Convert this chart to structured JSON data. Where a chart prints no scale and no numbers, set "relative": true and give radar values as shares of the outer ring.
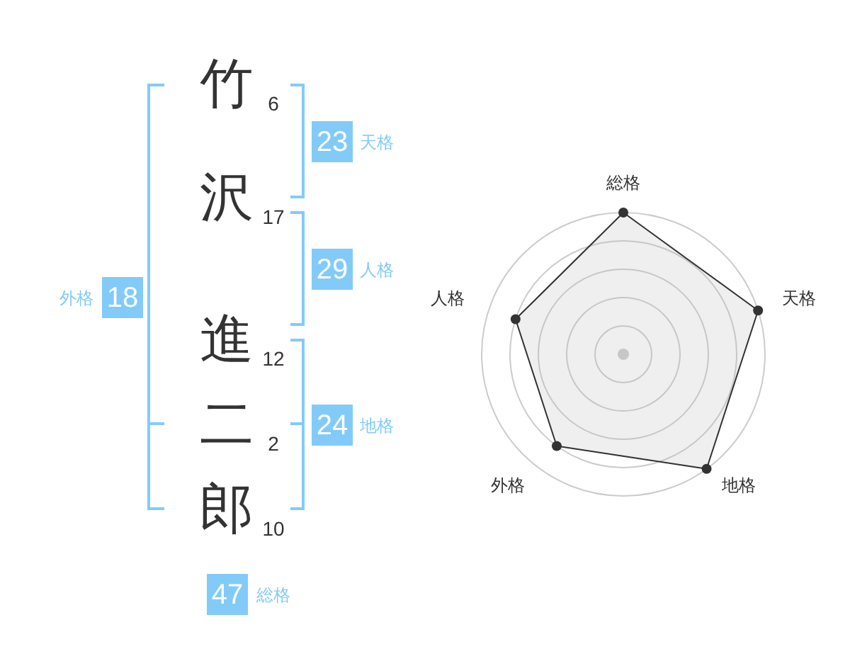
{
  "chart_data": [
    {
      "type": "other",
      "categories": [
        "竹",
        "沢",
        "進",
        "二",
        "郎"
      ],
      "values": [
        6,
        17,
        12,
        2,
        10
      ],
      "data_labels": true,
      "color": "#333333"
    },
    {
      "type": "other",
      "categories": [
        "天格",
        "人格",
        "地格",
        "外格",
        "総格"
      ],
      "values": [
        23,
        29,
        24,
        18,
        47
      ],
      "data_labels": true,
      "color": "#82cbf9"
    },
    {
      "type": "radar",
      "categories": [
        "総格",
        "天格",
        "地格",
        "外格",
        "人格"
      ],
      "series": [
        {
          "color": "#333333",
          "values": [
            1,
            1,
            1,
            0.8,
            0.8
          ]
        }
      ],
      "relative": true,
      "grid": true,
      "marker": "circle"
    }
  ]
}
